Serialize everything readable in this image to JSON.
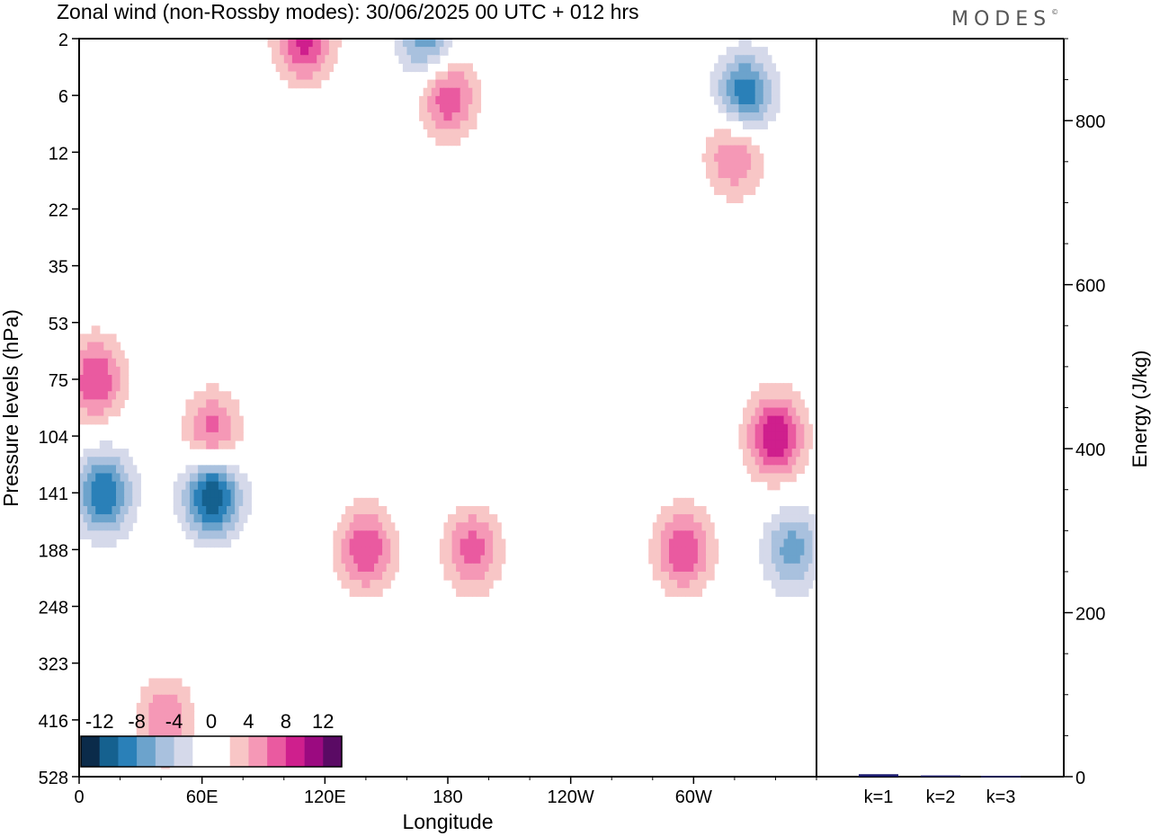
{
  "chart_data": [
    {
      "type": "heatmap",
      "title": "Zonal wind (non-Rossby modes):  30/06/2025  00 UTC  + 012 hrs",
      "xlabel": "Longitude",
      "ylabel": "Pressure levels (hPa)",
      "x_ticks": [
        "0",
        "60E",
        "120E",
        "180",
        "120W",
        "60W"
      ],
      "x_tick_degrees": [
        0,
        60,
        120,
        180,
        240,
        300
      ],
      "xlim": [
        0,
        360
      ],
      "y_levels": [
        "2",
        "6",
        "12",
        "22",
        "35",
        "53",
        "75",
        "104",
        "141",
        "188",
        "248",
        "323",
        "416",
        "528"
      ],
      "y_axis": "inverted, top = 2 hPa, bottom = 528 hPa",
      "colorbar": {
        "ticks": [
          "-12",
          "-8",
          "-4",
          "0",
          "4",
          "8",
          "12"
        ],
        "tick_values": [
          -12,
          -8,
          -4,
          0,
          4,
          8,
          12
        ],
        "range": [
          -14,
          14
        ],
        "colors": [
          "#0b2b4a",
          "#15618f",
          "#2a80b8",
          "#6ca3cc",
          "#a9c1de",
          "#d5d9ea",
          "#ffffff",
          "#ffffff",
          "#f8c6c6",
          "#f598b6",
          "#ea5aa0",
          "#cf1f8d",
          "#9b0a80",
          "#5a0a64"
        ]
      },
      "features": [
        {
          "kind": "negative",
          "lon": 65,
          "level": "141",
          "min_value": -13
        },
        {
          "kind": "negative",
          "lon": 12,
          "level": "141",
          "min_value": -10
        },
        {
          "kind": "negative",
          "lon": 325,
          "level": "6",
          "min_value": -10
        },
        {
          "kind": "negative",
          "lon": 170,
          "level": "2",
          "min_value": -8
        },
        {
          "kind": "negative",
          "lon": 348,
          "level": "188",
          "min_value": -7
        },
        {
          "kind": "positive",
          "lon": 140,
          "level": "188",
          "max_value": 8
        },
        {
          "kind": "positive",
          "lon": 192,
          "level": "188",
          "max_value": 7
        },
        {
          "kind": "positive",
          "lon": 295,
          "level": "188",
          "max_value": 8
        },
        {
          "kind": "positive",
          "lon": 110,
          "level": "2",
          "max_value": 9
        },
        {
          "kind": "positive",
          "lon": 180,
          "level": "6",
          "max_value": 8
        },
        {
          "kind": "positive",
          "lon": 340,
          "level": "104",
          "max_value": 10
        },
        {
          "kind": "positive",
          "lon": 8,
          "level": "75",
          "max_value": 8
        },
        {
          "kind": "positive",
          "lon": 65,
          "level": "104",
          "max_value": 8
        },
        {
          "kind": "positive",
          "lon": 320,
          "level": "12",
          "max_value": 7
        },
        {
          "kind": "positive",
          "lon": 42,
          "level": "416",
          "max_value": 6
        }
      ]
    },
    {
      "type": "bar",
      "ylabel": "Energy (J/kg)",
      "categories": [
        "k=1",
        "k=2",
        "k=3"
      ],
      "values": [
        3,
        1.5,
        1
      ],
      "ylim": [
        0,
        900
      ],
      "y_ticks": [
        0,
        200,
        400,
        600,
        800
      ],
      "bar_color": "#1a1a6e"
    }
  ],
  "brand": "MODES"
}
